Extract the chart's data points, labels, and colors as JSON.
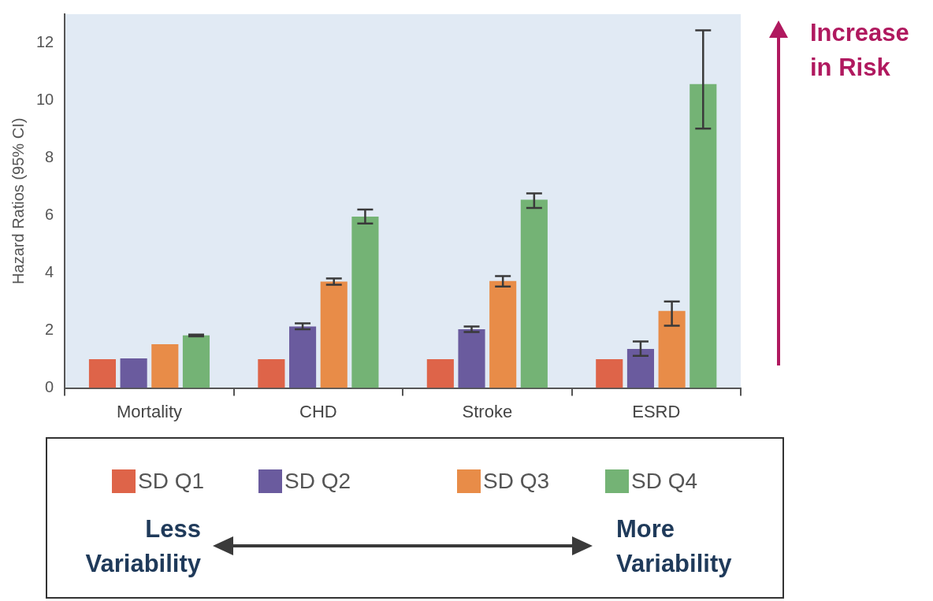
{
  "chart_data": {
    "type": "bar",
    "ylabel": "Hazard Ratios (95% CI)",
    "categories": [
      "Mortality",
      "CHD",
      "Stroke",
      "ESRD"
    ],
    "ylim": [
      0,
      13
    ],
    "yticks": [
      0,
      2,
      4,
      6,
      8,
      10,
      12
    ],
    "legend": "bottom",
    "series": [
      {
        "name": "SD Q1",
        "color": "#de6449",
        "values": [
          1,
          1,
          1,
          1
        ]
      },
      {
        "name": "SD Q2",
        "color": "#6a5b9e",
        "values": [
          1.03,
          2.14,
          2.04,
          1.36
        ],
        "errors": [
          null,
          [
            2.04,
            2.25
          ],
          [
            1.95,
            2.14
          ],
          [
            1.12,
            1.62
          ]
        ]
      },
      {
        "name": "SD Q3",
        "color": "#e88c48",
        "values": [
          1.52,
          3.7,
          3.72,
          2.68
        ],
        "errors": [
          null,
          [
            3.59,
            3.81
          ],
          [
            3.53,
            3.89
          ],
          [
            2.17,
            3.01
          ]
        ]
      },
      {
        "name": "SD Q4",
        "color": "#74b375",
        "values": [
          1.83,
          5.96,
          6.55,
          10.57
        ],
        "errors": [
          [
            1.8,
            1.86
          ],
          [
            5.72,
            6.21
          ],
          [
            6.26,
            6.77
          ],
          [
            9.02,
            12.44
          ]
        ]
      }
    ],
    "annotations": [
      "Increase in Risk",
      "Less Variability",
      "More Variability"
    ]
  }
}
